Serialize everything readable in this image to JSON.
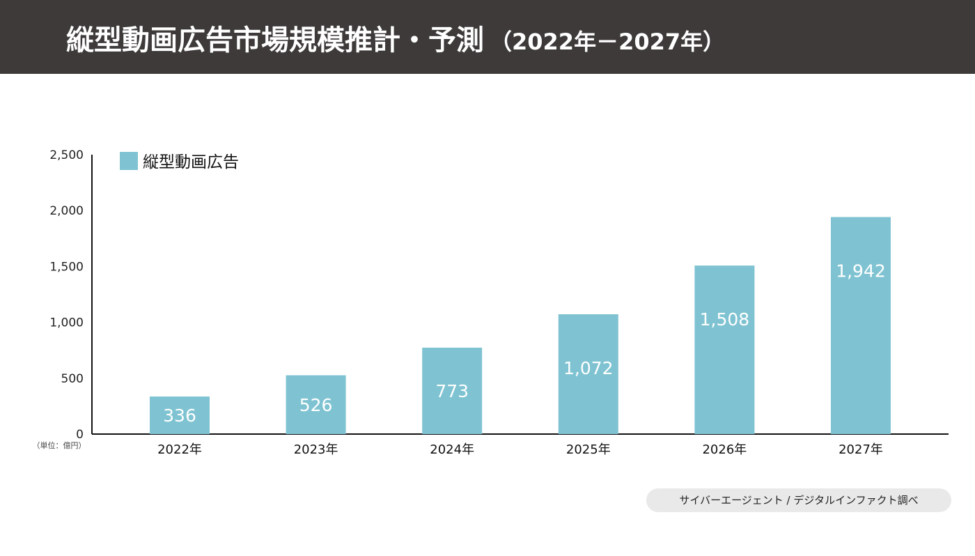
{
  "header": {
    "title": "縦型動画広告市場規模推計・予測",
    "period": "（2022年－2027年）"
  },
  "source": "サイバーエージェント / デジタルインファクト調べ",
  "unit_note": "（単位：億円）",
  "colors": {
    "bar": "#7fc3d2",
    "header_bg": "#3d3a39",
    "axis": "#111111"
  },
  "chart_data": {
    "type": "bar",
    "categories": [
      "2022年",
      "2023年",
      "2024年",
      "2025年",
      "2026年",
      "2027年"
    ],
    "series": [
      {
        "name": "縦型動画広告",
        "values": [
          336,
          526,
          773,
          1072,
          1508,
          1942
        ],
        "value_labels": [
          "336",
          "526",
          "773",
          "1,072",
          "1,508",
          "1,942"
        ]
      }
    ],
    "yticks": [
      0,
      500,
      1000,
      1500,
      2000,
      2500
    ],
    "ytick_labels": [
      "0",
      "500",
      "1,000",
      "1,500",
      "2,000",
      "2,500"
    ],
    "ylim": [
      0,
      2500
    ],
    "legend_position": "top-left",
    "grid": false
  }
}
